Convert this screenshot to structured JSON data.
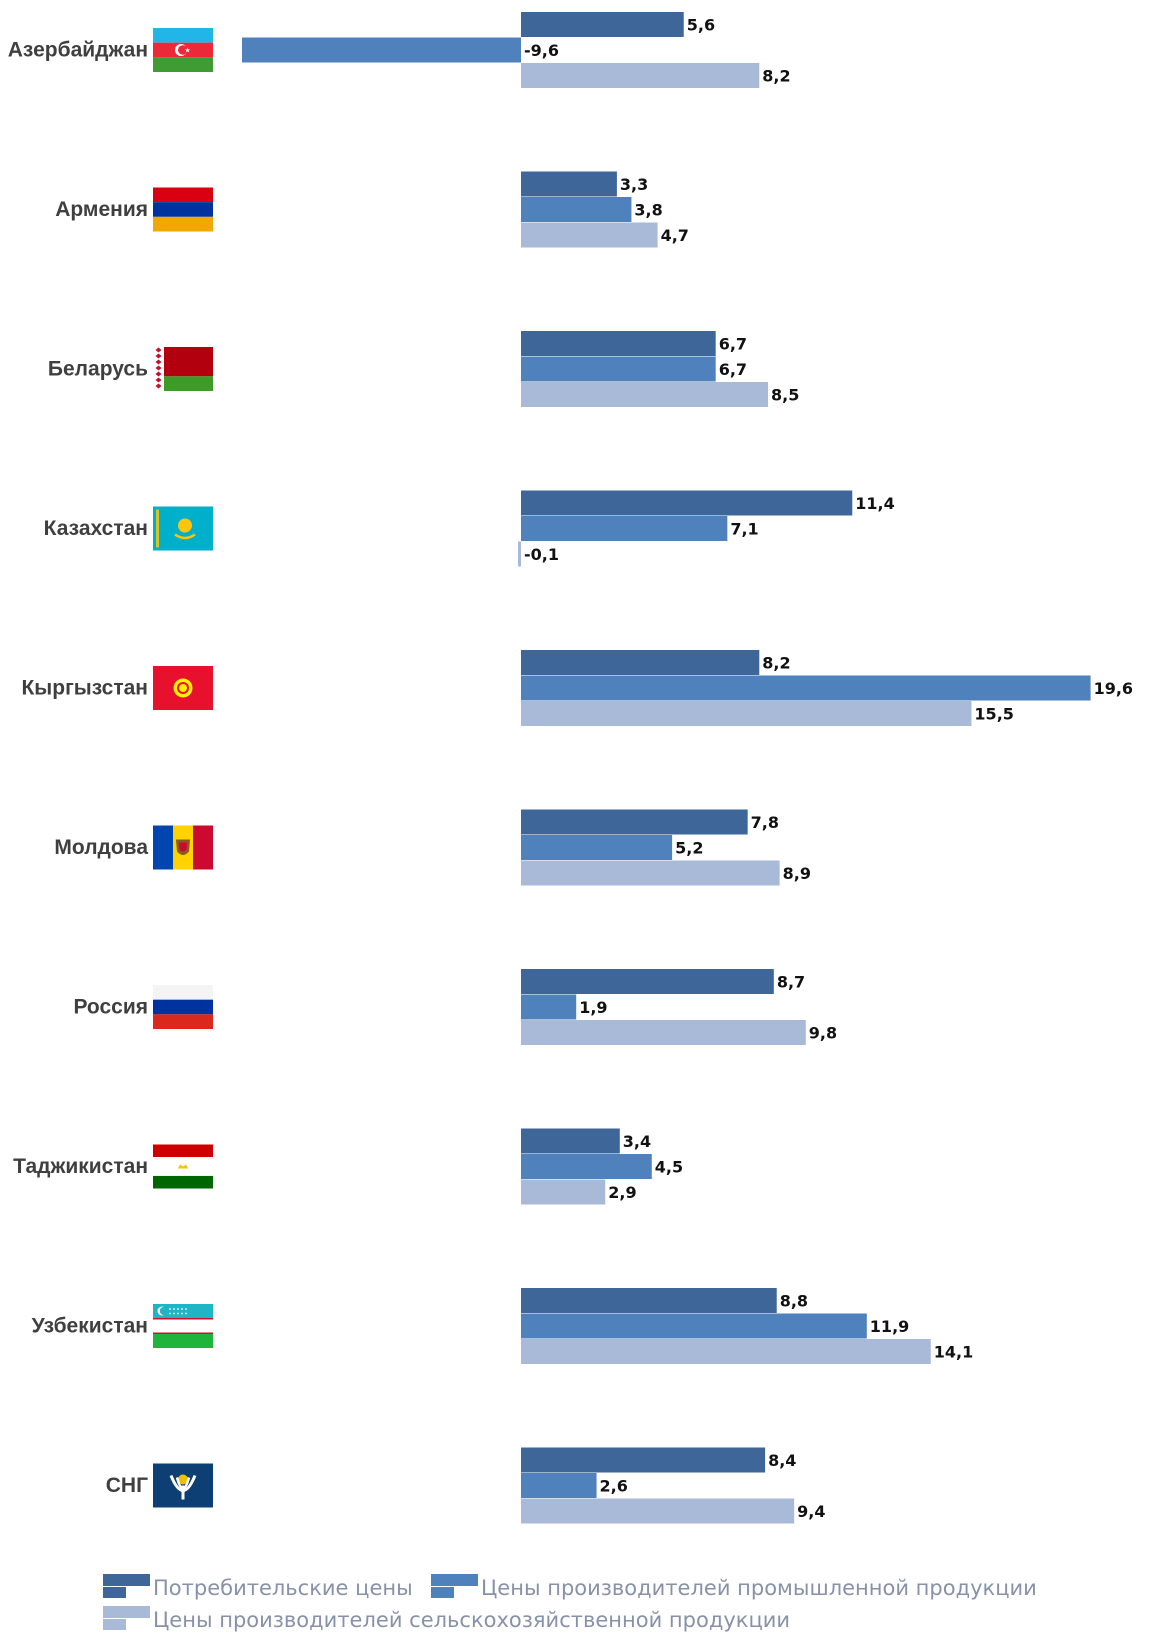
{
  "chart_data": {
    "type": "bar",
    "orientation": "horizontal",
    "categories": [
      "Азербайджан",
      "Армения",
      "Беларусь",
      "Казахстан",
      "Кыргызстан",
      "Молдова",
      "Россия",
      "Таджикистан",
      "Узбекистан",
      "СНГ"
    ],
    "series": [
      {
        "name": "Потребительские цены",
        "color": "#3e6699",
        "values": [
          5.6,
          3.3,
          6.7,
          11.4,
          8.2,
          7.8,
          8.7,
          3.4,
          8.8,
          8.4
        ]
      },
      {
        "name": "Цены производителей промышленной продукции",
        "color": "#4f81bd",
        "values": [
          -9.6,
          3.8,
          6.7,
          7.1,
          19.6,
          5.2,
          1.9,
          4.5,
          11.9,
          2.6
        ]
      },
      {
        "name": "Цены производителей сельскохозяйственной продукции",
        "color": "#a9b9d8",
        "values": [
          8.2,
          4.7,
          8.5,
          -0.1,
          15.5,
          8.9,
          9.8,
          2.9,
          14.1,
          9.4
        ]
      }
    ],
    "value_labels": [
      [
        "5,6",
        "-9,6",
        "8,2"
      ],
      [
        "3,3",
        "3,8",
        "4,7"
      ],
      [
        "6,7",
        "6,7",
        "8,5"
      ],
      [
        "11,4",
        "7,1",
        "-0,1"
      ],
      [
        "8,2",
        "19,6",
        "15,5"
      ],
      [
        "7,8",
        "5,2",
        "8,9"
      ],
      [
        "8,7",
        "1,9",
        "9,8"
      ],
      [
        "3,4",
        "4,5",
        "2,9"
      ],
      [
        "8,8",
        "11,9",
        "14,1"
      ],
      [
        "8,4",
        "2,6",
        "9,4"
      ]
    ],
    "flags": [
      "azerbaijan-flag",
      "armenia-flag",
      "belarus-flag",
      "kazakhstan-flag",
      "kyrgyzstan-flag",
      "moldova-flag",
      "russia-flag",
      "tajikistan-flag",
      "uzbekistan-flag",
      "cis-emblem"
    ],
    "xlim": [
      -9.6,
      19.6
    ],
    "grid": false,
    "legend_position": "bottom"
  }
}
